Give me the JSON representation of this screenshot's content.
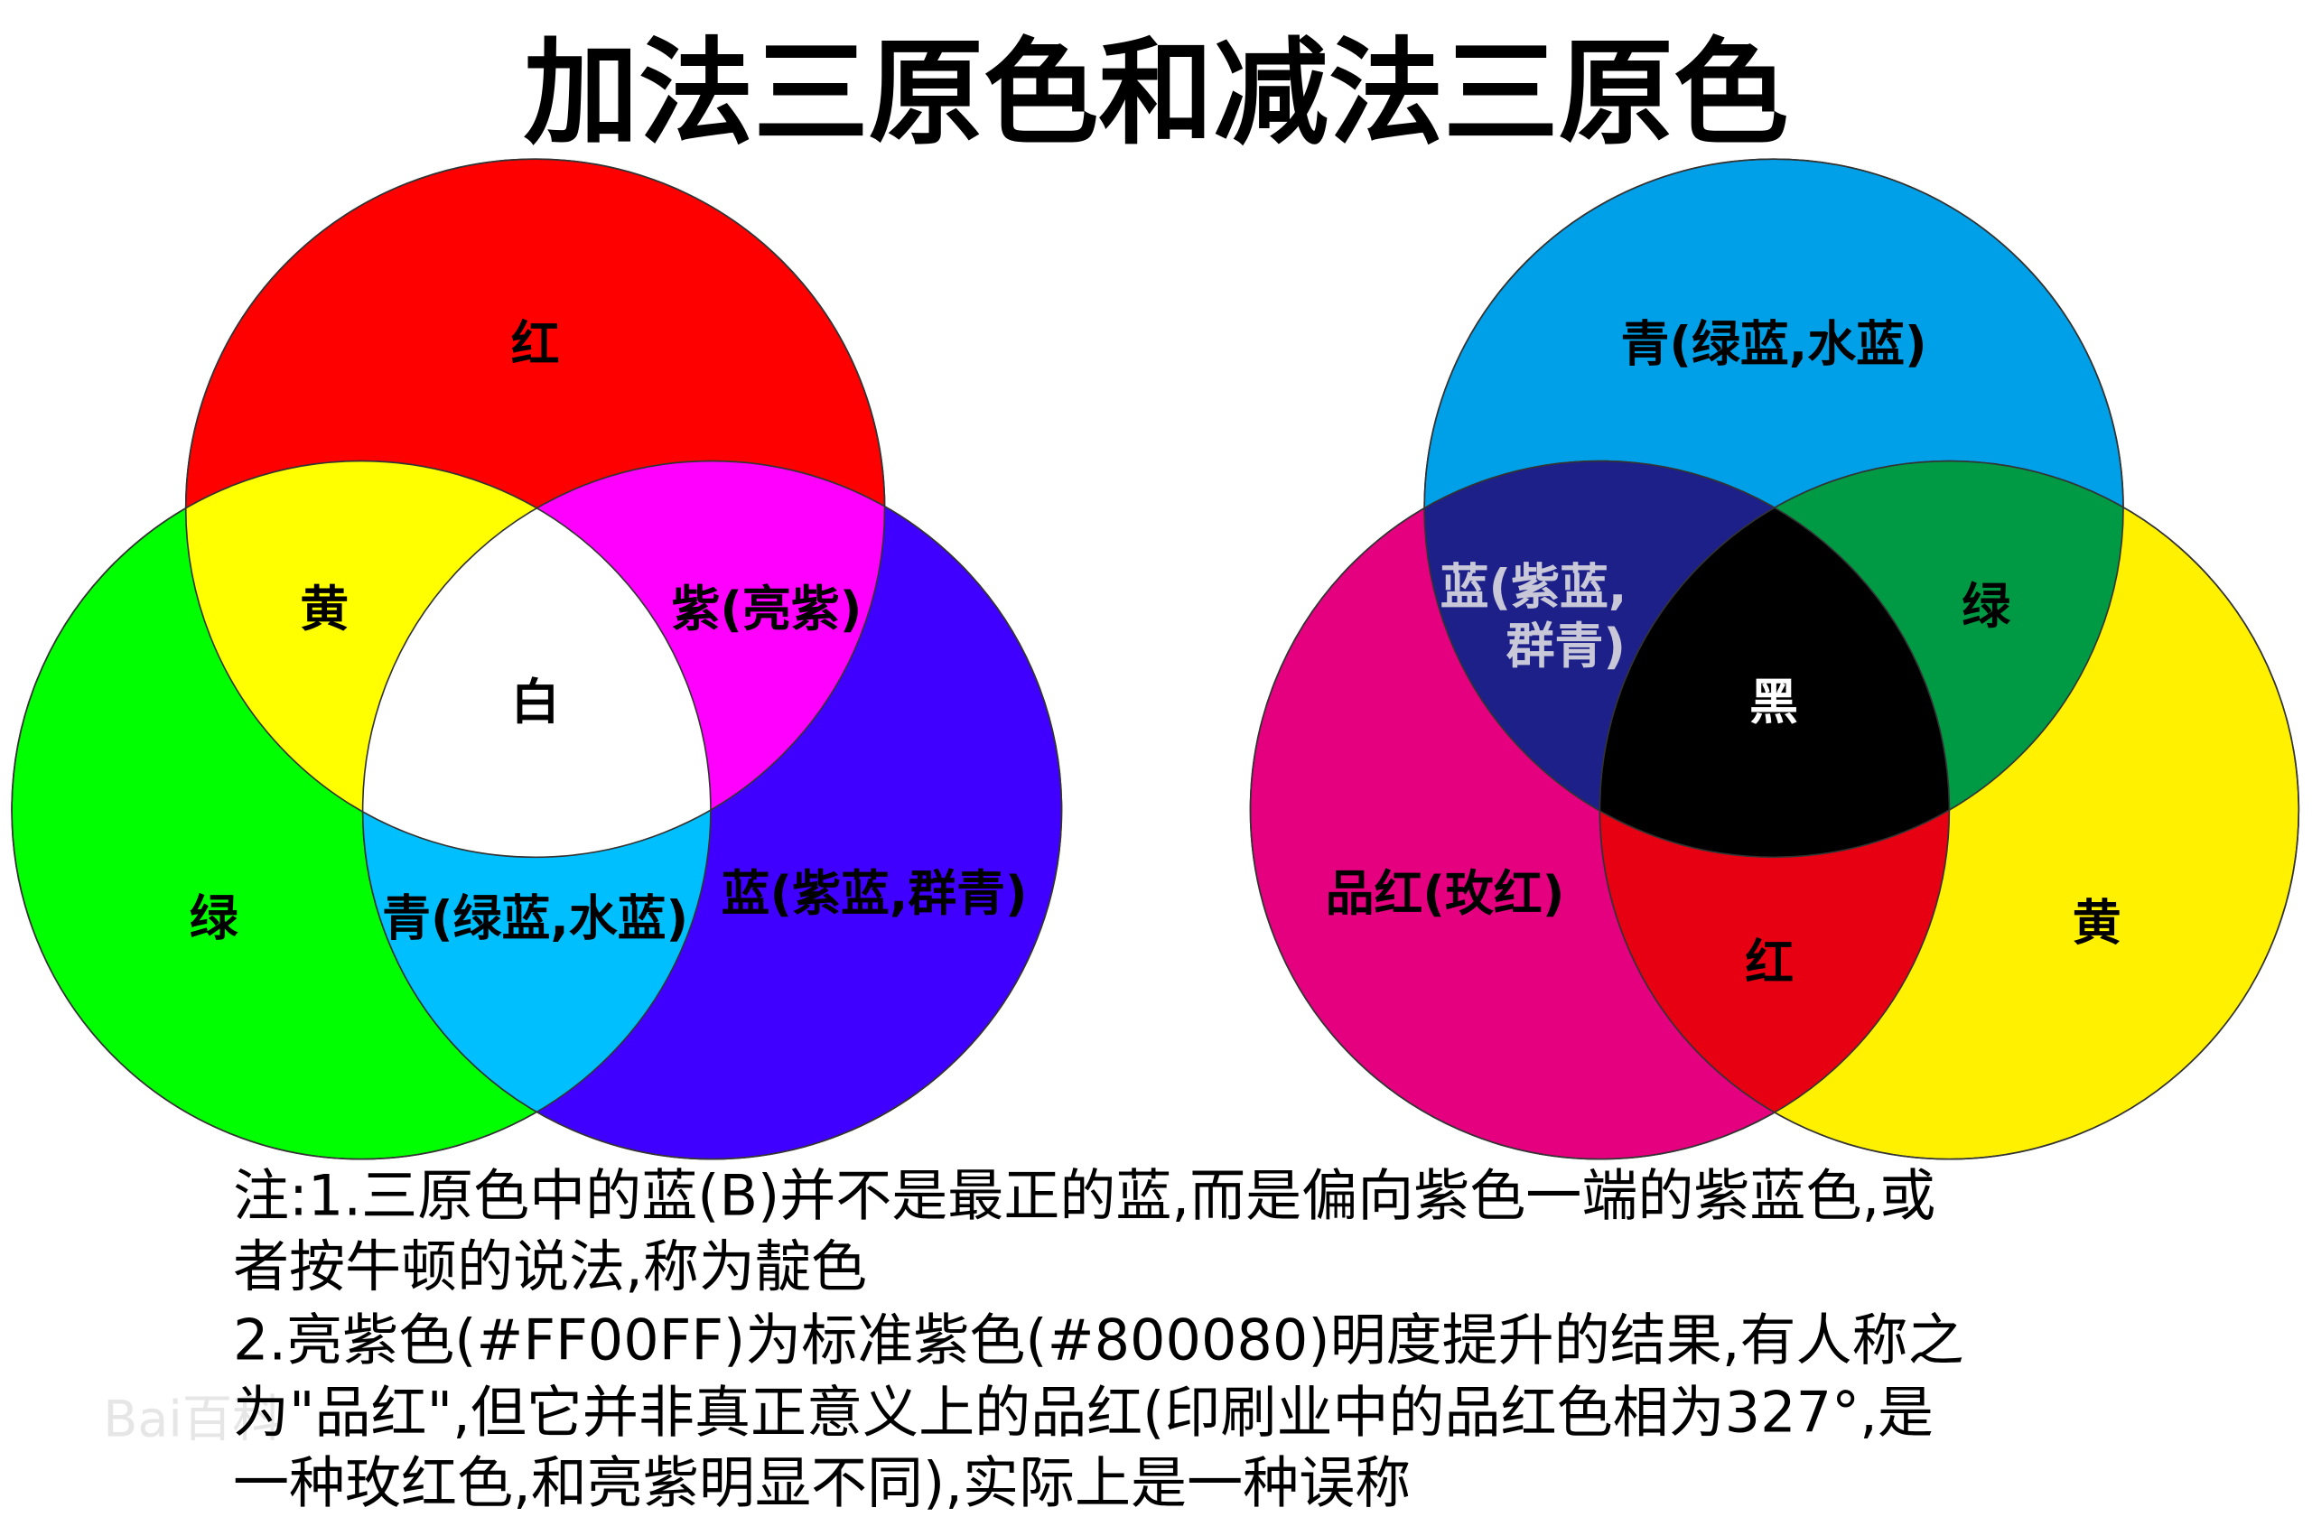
{
  "title": "加法三原色和减法三原色",
  "additive": {
    "colors": {
      "red": "#FF0000",
      "green": "#00FF00",
      "blue": "#4000FF",
      "yellow": "#FFFF00",
      "magenta": "#FF00FF",
      "cyan": "#00BFFF",
      "white": "#FFFFFF"
    },
    "labels": {
      "red": "红",
      "green": "绿",
      "blue": "蓝(紫蓝,群青)",
      "yellow": "黄",
      "magenta": "紫(亮紫)",
      "cyan": "青(绿蓝,水蓝)",
      "white": "白"
    }
  },
  "subtractive": {
    "colors": {
      "cyan": "#00A0E9",
      "magenta": "#E4007F",
      "yellow": "#FFF100",
      "blue": "#1D2088",
      "green": "#009944",
      "red": "#E60012",
      "black": "#000000"
    },
    "labels": {
      "cyan": "青(绿蓝,水蓝)",
      "magenta": "品红(玫红)",
      "yellow": "黄",
      "blue_1": "蓝(紫蓝,",
      "blue_2": "群青)",
      "green": "绿",
      "red": "红",
      "black": "黑"
    }
  },
  "notes": [
    "注:1.三原色中的蓝(B)并不是最正的蓝,而是偏向紫色一端的紫蓝色,或",
    "者按牛顿的说法,称为靛色",
    "2.亮紫色(#FF00FF)为标准紫色(#800080)明度提升的结果,有人称之",
    "为\"品红\",但它并非真正意义上的品红(印刷业中的品红色相为327°,是",
    "一种玫红色,和亮紫明显不同),实际上是一种误称"
  ],
  "watermark": "Bai百科"
}
